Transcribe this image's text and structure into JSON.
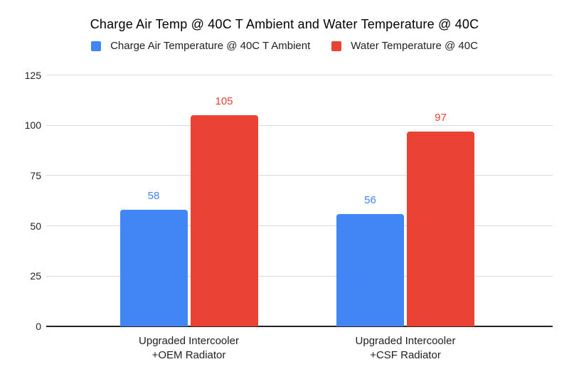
{
  "chart_data": {
    "type": "bar",
    "title": "Charge Air Temp @ 40C T Ambient and Water Temperature @ 40C",
    "categories": [
      "Upgraded Intercooler\n+OEM Radiator",
      "Upgraded Intercooler\n+CSF Radiator"
    ],
    "series": [
      {
        "name": "Charge Air Temperature @ 40C T Ambient",
        "color": "#4285F4",
        "values": [
          58,
          56
        ]
      },
      {
        "name": "Water Temperature @ 40C",
        "color": "#EA4335",
        "values": [
          105,
          97
        ]
      }
    ],
    "xlabel": "",
    "ylabel": "",
    "ylim": [
      0,
      125
    ],
    "yticks": [
      0,
      25,
      50,
      75,
      100,
      125
    ],
    "grid": true,
    "legend_position": "top",
    "data_labels": true
  },
  "colors": {
    "background": "#FFFFFF",
    "gridline": "#DADADA",
    "axis_line": "#212121",
    "text": "#212121",
    "title_text": "#000000",
    "series_blue": "#4285F4",
    "series_red": "#EA4335"
  }
}
